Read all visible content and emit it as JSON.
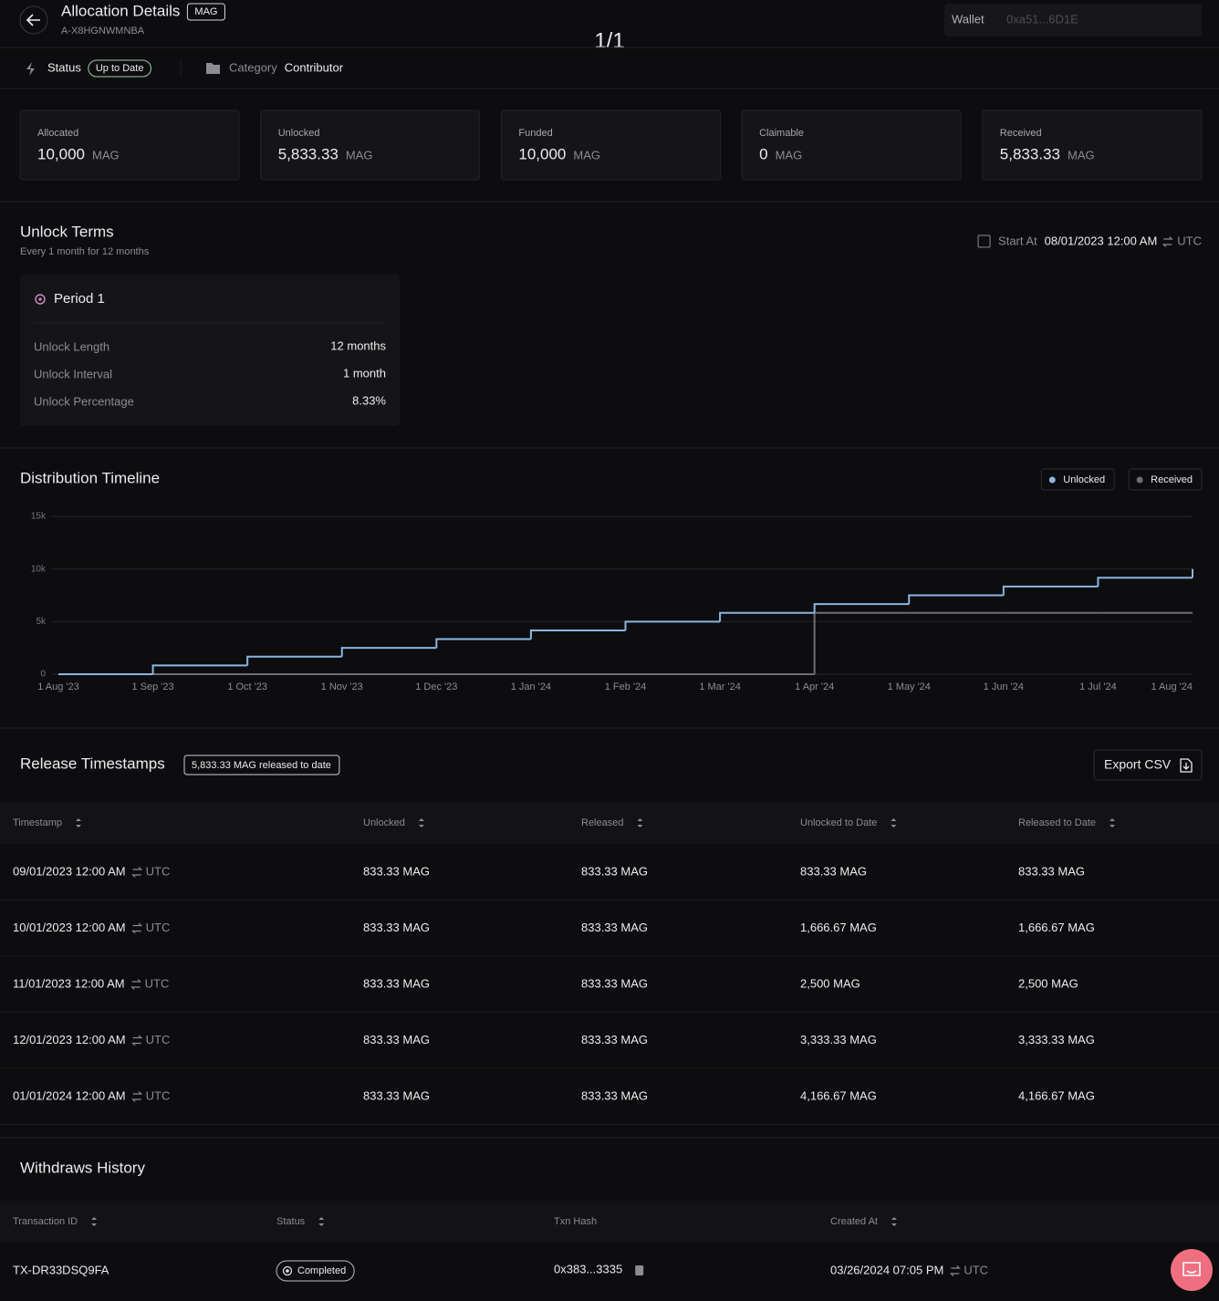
{
  "header": {
    "title": "Allocation Details",
    "token": "MAG",
    "id": "A-X8HGNWMNBA",
    "page_indicator": "1/1",
    "wallet_label": "Wallet",
    "wallet_value": "0xa51...6D1E"
  },
  "status_bar": {
    "status_label": "Status",
    "status": "Up to Date",
    "category_label": "Category",
    "category": "Contributor"
  },
  "stats": [
    {
      "label": "Allocated",
      "value": "10,000",
      "unit": "MAG"
    },
    {
      "label": "Unlocked",
      "value": "5,833.33",
      "unit": "MAG"
    },
    {
      "label": "Funded",
      "value": "10,000",
      "unit": "MAG"
    },
    {
      "label": "Claimable",
      "value": "0",
      "unit": "MAG"
    },
    {
      "label": "Received",
      "value": "5,833.33",
      "unit": "MAG"
    }
  ],
  "unlock_terms": {
    "title": "Unlock Terms",
    "subtitle": "Every 1 month for 12 months",
    "start_label": "Start At",
    "start_value": "08/01/2023 12:00 AM",
    "timezone": "UTC",
    "period": {
      "title": "Period 1",
      "rows": [
        [
          "Unlock Length",
          "12 months"
        ],
        [
          "Unlock Interval",
          "1 month"
        ],
        [
          "Unlock Percentage",
          "8.33%"
        ]
      ]
    }
  },
  "chart_data": {
    "type": "line",
    "title": "Distribution Timeline",
    "categories": [
      "1 Aug '23",
      "1 Sep '23",
      "1 Oct '23",
      "1 Nov '23",
      "1 Dec '23",
      "1 Jan '24",
      "1 Feb '24",
      "1 Mar '24",
      "1 Apr '24",
      "1 May '24",
      "1 Jun '24",
      "1 Jul '24",
      "1 Aug '24"
    ],
    "series": [
      {
        "name": "Unlocked",
        "color": "#8ab6e2",
        "values": [
          0,
          833.33,
          1666.67,
          2500,
          3333.33,
          4166.67,
          5000,
          5833.33,
          6666.67,
          7500,
          8333.33,
          9166.67,
          10000
        ]
      },
      {
        "name": "Received",
        "color": "#6e6e74",
        "values": [
          0,
          0,
          0,
          0,
          0,
          0,
          0,
          0,
          5833.33,
          5833.33,
          5833.33,
          5833.33,
          5833.33
        ]
      }
    ],
    "ylim": [
      0,
      15000
    ],
    "yticks": [
      0,
      {
        "value": 5000,
        "label": "5k"
      },
      {
        "value": 10000,
        "label": "10k"
      },
      {
        "value": 15000,
        "label": "15k"
      }
    ],
    "grid": true,
    "step": true,
    "legend": "top-right"
  },
  "release": {
    "title": "Release Timestamps",
    "badge": "5,833.33 MAG released to date",
    "export": "Export CSV",
    "columns": [
      {
        "label": "Timestamp",
        "sortable": true
      },
      {
        "label": "Unlocked",
        "sortable": true
      },
      {
        "label": "Released",
        "sortable": true
      },
      {
        "label": "Unlocked to Date",
        "sortable": true
      },
      {
        "label": "Released to Date",
        "sortable": true
      }
    ],
    "rows": [
      [
        "09/01/2023 12:00 AM",
        "UTC",
        "833.33 MAG",
        "833.33 MAG",
        "833.33 MAG",
        "833.33 MAG"
      ],
      [
        "10/01/2023 12:00 AM",
        "UTC",
        "833.33 MAG",
        "833.33 MAG",
        "1,666.67 MAG",
        "1,666.67 MAG"
      ],
      [
        "11/01/2023 12:00 AM",
        "UTC",
        "833.33 MAG",
        "833.33 MAG",
        "2,500 MAG",
        "2,500 MAG"
      ],
      [
        "12/01/2023 12:00 AM",
        "UTC",
        "833.33 MAG",
        "833.33 MAG",
        "3,333.33 MAG",
        "3,333.33 MAG"
      ],
      [
        "01/01/2024 12:00 AM",
        "UTC",
        "833.33 MAG",
        "833.33 MAG",
        "4,166.67 MAG",
        "4,166.67 MAG"
      ]
    ]
  },
  "withdraws": {
    "title": "Withdraws History",
    "columns": [
      {
        "label": "Transaction ID",
        "sortable": true
      },
      {
        "label": "Status",
        "sortable": true
      },
      {
        "label": "Txn Hash",
        "sortable": false
      },
      {
        "label": "Created At",
        "sortable": true
      }
    ],
    "rows": [
      {
        "id": "TX-DR33DSQ9FA",
        "status": "Completed",
        "hash": "0x383...3335",
        "created": "03/26/2024 07:05 PM",
        "timezone": "UTC"
      }
    ]
  }
}
